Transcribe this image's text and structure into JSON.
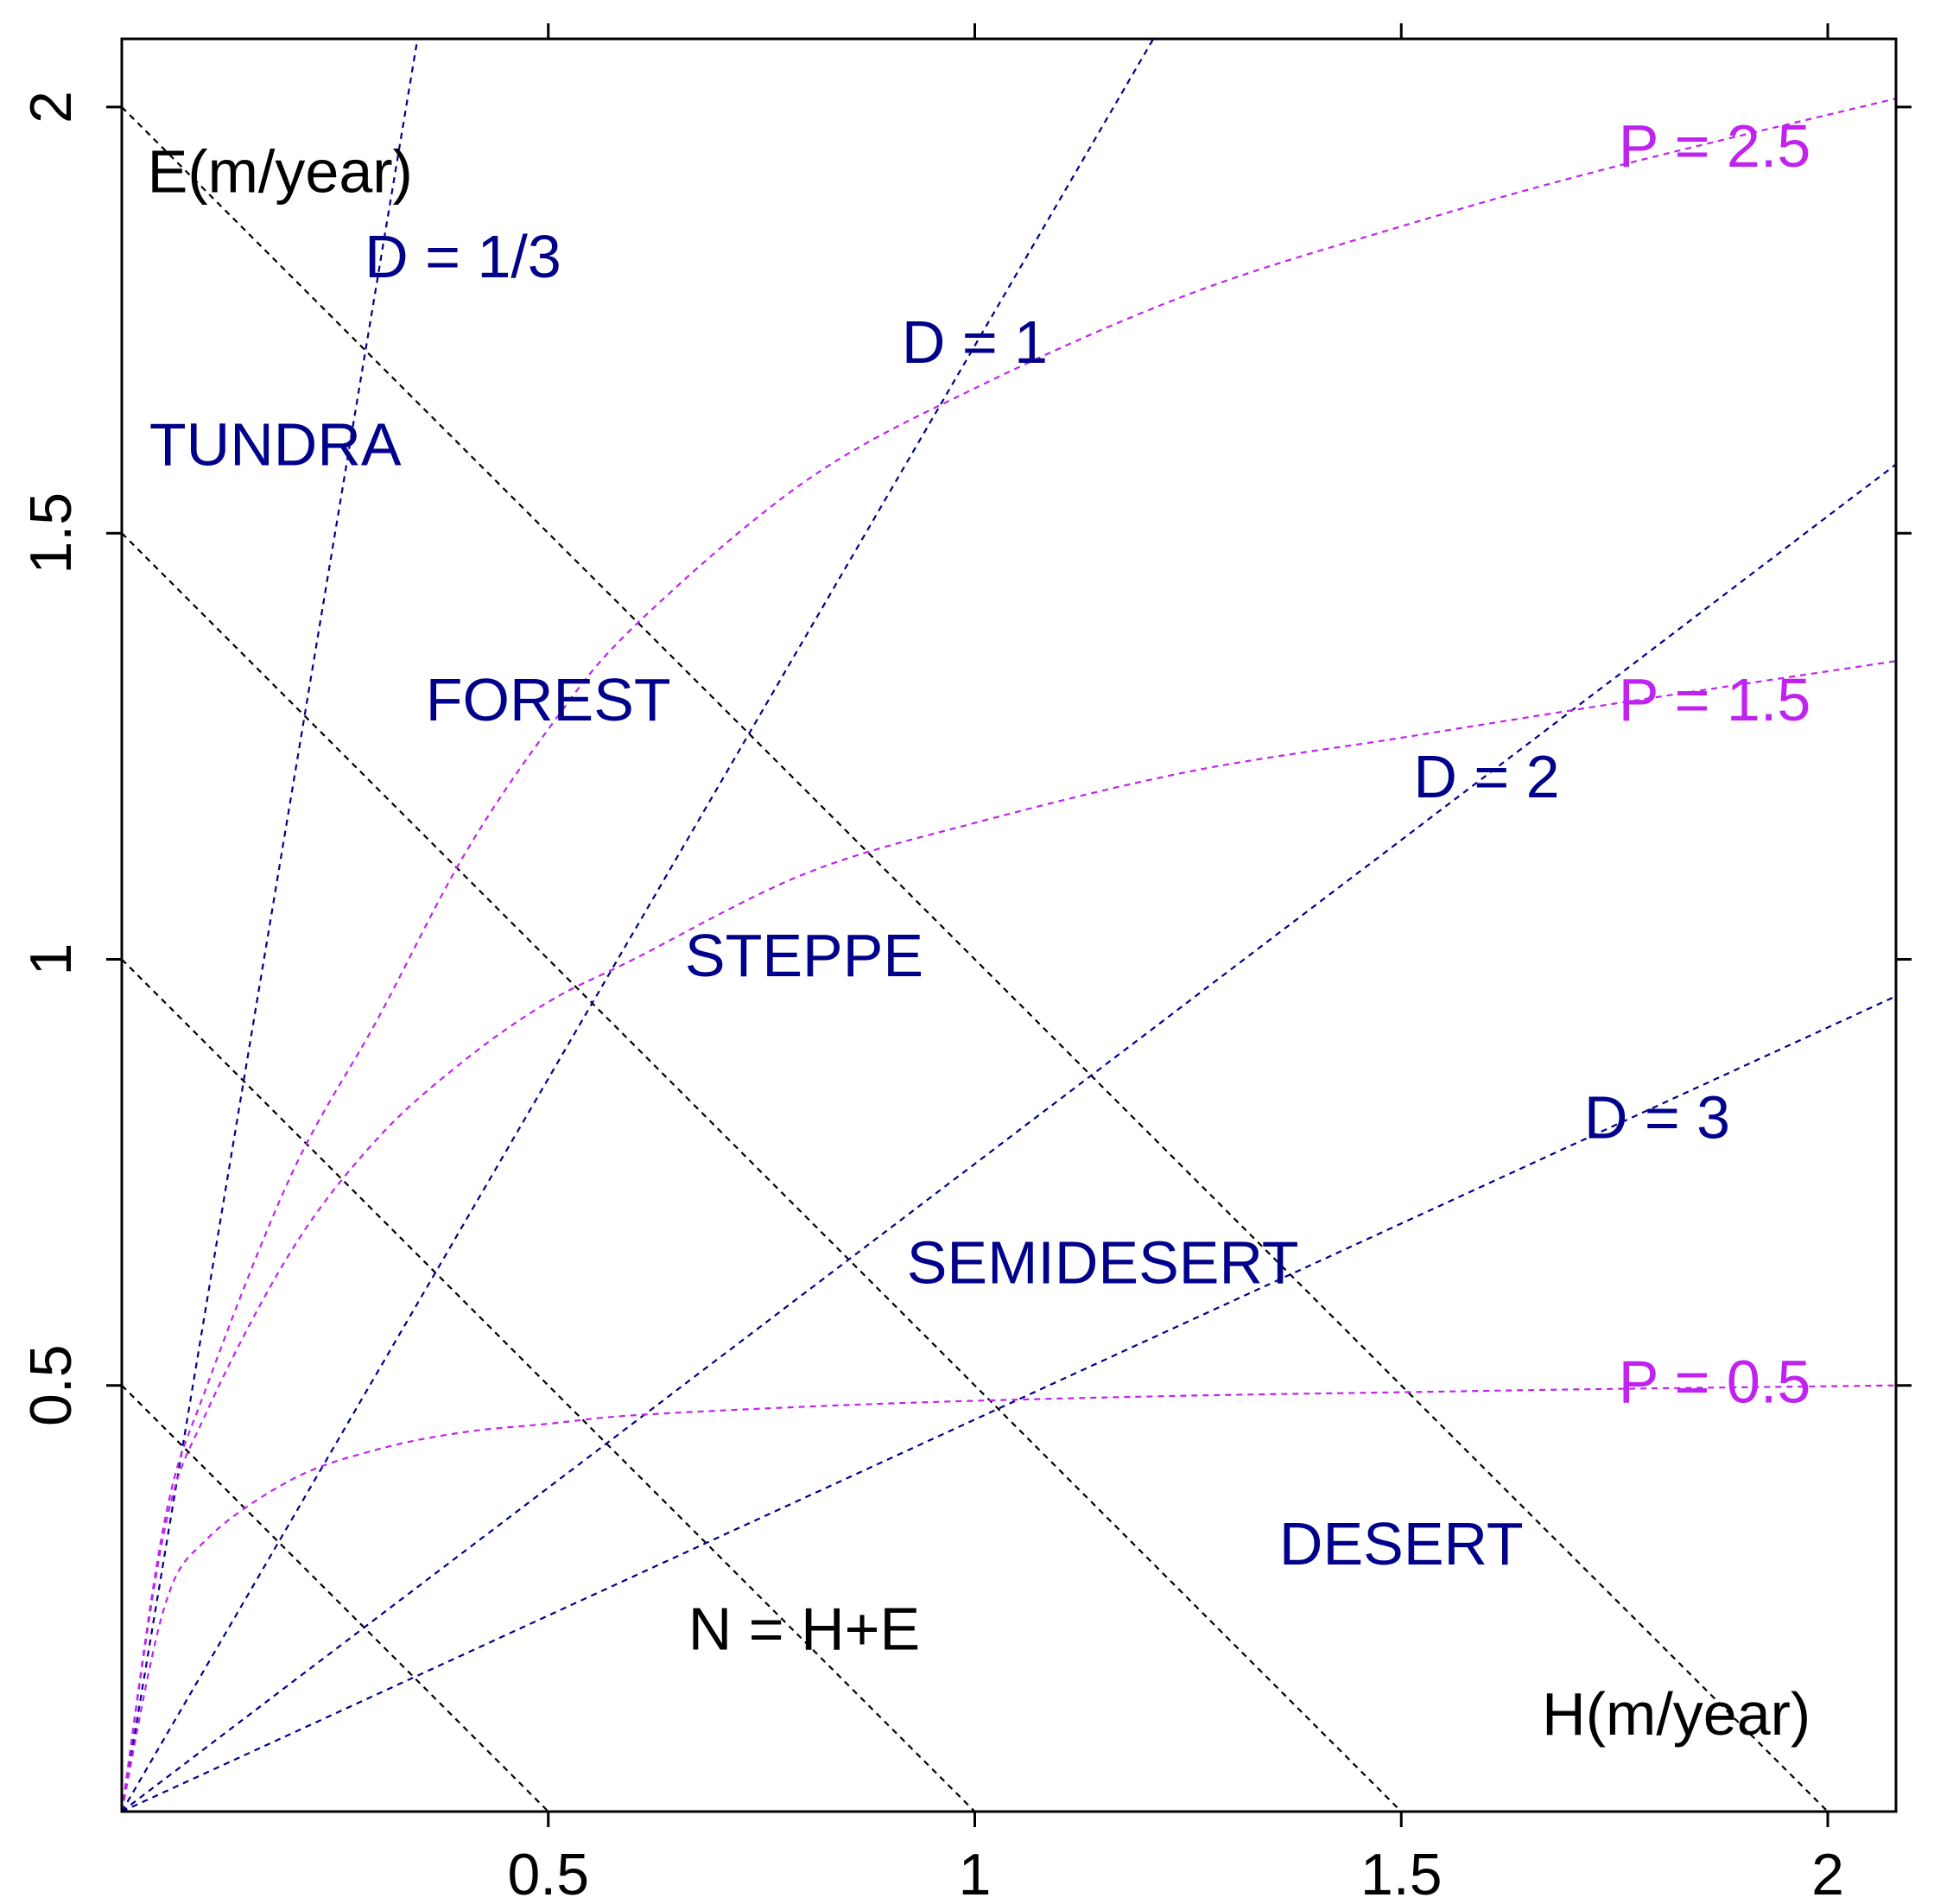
{
  "chart_data": {
    "type": "line",
    "title": "",
    "xlabel": "H(m/year)",
    "ylabel": "E(m/year)",
    "xlim": [
      0,
      2.08
    ],
    "ylim": [
      0,
      2.08
    ],
    "x_ticks": [
      "0.5",
      "1",
      "1.5",
      "2"
    ],
    "y_ticks": [
      "0.5",
      "1",
      "1.5",
      "2"
    ],
    "x_tick_values": [
      0.5,
      1,
      1.5,
      2
    ],
    "y_tick_values": [
      0.5,
      1,
      1.5,
      2
    ],
    "colors": {
      "n_lines": "#000000",
      "d_lines": "#00008B",
      "p_curves": "#C023F0",
      "region_labels": "#00008B",
      "axis_labels": "#000000"
    },
    "series": [
      {
        "name": "N = 0.5",
        "family": "N",
        "kind": "line",
        "points": [
          [
            0,
            0.5
          ],
          [
            0.5,
            0
          ]
        ]
      },
      {
        "name": "N = 1",
        "family": "N",
        "kind": "line",
        "points": [
          [
            0,
            1
          ],
          [
            1,
            0
          ]
        ]
      },
      {
        "name": "N = 1.5",
        "family": "N",
        "kind": "line",
        "points": [
          [
            0,
            1.5
          ],
          [
            1.5,
            0
          ]
        ]
      },
      {
        "name": "N = 2",
        "family": "N",
        "kind": "line",
        "points": [
          [
            0,
            2
          ],
          [
            2,
            0
          ]
        ]
      },
      {
        "name": "D = 1/3",
        "family": "D",
        "kind": "ray",
        "slope": 6.0
      },
      {
        "name": "D = 1",
        "family": "D",
        "kind": "ray",
        "slope": 1.72
      },
      {
        "name": "D = 2",
        "family": "D",
        "kind": "ray",
        "slope": 0.76
      },
      {
        "name": "D = 3",
        "family": "D",
        "kind": "ray",
        "slope": 0.46
      },
      {
        "name": "P = 0.5",
        "family": "P",
        "kind": "curve",
        "x": [
          0,
          0.05,
          0.1,
          0.2,
          0.3,
          0.4,
          0.5,
          0.6,
          0.8,
          1.0,
          1.25,
          1.5,
          1.75,
          2.08
        ],
        "y": [
          0,
          0.24,
          0.32,
          0.39,
          0.425,
          0.445,
          0.455,
          0.465,
          0.475,
          0.482,
          0.488,
          0.492,
          0.496,
          0.5
        ]
      },
      {
        "name": "P = 1.5",
        "family": "P",
        "kind": "curve",
        "x": [
          0,
          0.05,
          0.1,
          0.2,
          0.3,
          0.4,
          0.5,
          0.6,
          0.8,
          1.0,
          1.25,
          1.5,
          1.75,
          2.08
        ],
        "y": [
          0,
          0.33,
          0.47,
          0.66,
          0.79,
          0.88,
          0.95,
          1.0,
          1.1,
          1.16,
          1.22,
          1.26,
          1.3,
          1.35
        ]
      },
      {
        "name": "P = 2.5",
        "family": "P",
        "kind": "curve",
        "x": [
          0,
          0.05,
          0.1,
          0.2,
          0.3,
          0.4,
          0.5,
          0.6,
          0.8,
          1.0,
          1.25,
          1.5,
          1.75,
          2.08
        ],
        "y": [
          0,
          0.34,
          0.5,
          0.75,
          0.93,
          1.12,
          1.27,
          1.39,
          1.56,
          1.67,
          1.78,
          1.86,
          1.93,
          2.01
        ]
      }
    ],
    "annotations": [
      {
        "id": "e-axis-label",
        "text": "E(m/year)",
        "x": 0.03,
        "y": 1.9,
        "color": "#000000",
        "anchor": "start"
      },
      {
        "id": "h-axis-label",
        "text": "H(m/year)",
        "x": 1.98,
        "y": 0.09,
        "color": "#000000",
        "anchor": "end"
      },
      {
        "id": "n-formula-label",
        "text": "N = H+E",
        "x": 0.8,
        "y": 0.19,
        "color": "#000000",
        "anchor": "middle"
      },
      {
        "id": "d-one-third-label",
        "text": "D = 1/3",
        "x": 0.4,
        "y": 1.8,
        "color": "#00008B",
        "anchor": "middle"
      },
      {
        "id": "d-one-label",
        "text": "D = 1",
        "x": 1.0,
        "y": 1.7,
        "color": "#00008B",
        "anchor": "middle"
      },
      {
        "id": "d-two-label",
        "text": "D = 2",
        "x": 1.6,
        "y": 1.19,
        "color": "#00008B",
        "anchor": "middle"
      },
      {
        "id": "d-three-label",
        "text": "D = 3",
        "x": 1.8,
        "y": 0.79,
        "color": "#00008B",
        "anchor": "middle"
      },
      {
        "id": "p-two-point-five-label",
        "text": "P = 2.5",
        "x": 1.98,
        "y": 1.93,
        "color": "#C023F0",
        "anchor": "end"
      },
      {
        "id": "p-one-point-five-label",
        "text": "P = 1.5",
        "x": 1.98,
        "y": 1.28,
        "color": "#C023F0",
        "anchor": "end"
      },
      {
        "id": "p-zero-point-five-label",
        "text": "P = 0.5",
        "x": 1.98,
        "y": 0.48,
        "color": "#C023F0",
        "anchor": "end"
      },
      {
        "id": "tundra-label",
        "text": "TUNDRA",
        "x": 0.18,
        "y": 1.58,
        "color": "#00008B",
        "anchor": "middle"
      },
      {
        "id": "forest-label",
        "text": "FOREST",
        "x": 0.5,
        "y": 1.28,
        "color": "#00008B",
        "anchor": "middle"
      },
      {
        "id": "steppe-label",
        "text": "STEPPE",
        "x": 0.8,
        "y": 0.98,
        "color": "#00008B",
        "anchor": "middle"
      },
      {
        "id": "semidesert-label",
        "text": "SEMIDESERT",
        "x": 1.15,
        "y": 0.62,
        "color": "#00008B",
        "anchor": "middle"
      },
      {
        "id": "desert-label",
        "text": "DESERT",
        "x": 1.5,
        "y": 0.29,
        "color": "#00008B",
        "anchor": "middle"
      }
    ]
  }
}
